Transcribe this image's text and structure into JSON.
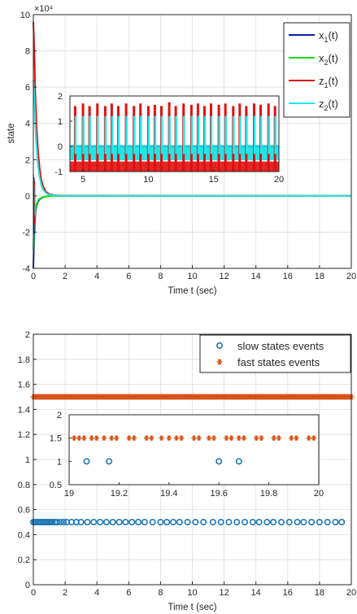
{
  "chart_data": [
    {
      "type": "line",
      "title": "",
      "xlabel": "Time t (sec)",
      "ylabel": "state",
      "xlim": [
        0,
        20
      ],
      "ylim": [
        -4,
        10
      ],
      "y_exponent": "×10⁴",
      "x_ticks": [
        0,
        2,
        4,
        6,
        8,
        10,
        12,
        14,
        16,
        18,
        20
      ],
      "y_ticks": [
        -4,
        -2,
        0,
        2,
        4,
        6,
        8,
        10
      ],
      "grid": true,
      "legend_position": "top-right",
      "series": [
        {
          "name": "x1(t)",
          "name_base": "x",
          "name_sub": "1",
          "name_suffix": "(t)",
          "color": "#0b1fa8",
          "x": [
            0,
            0.02,
            0.05,
            0.1,
            0.15,
            0.2,
            0.3,
            0.4,
            0.6,
            0.8,
            1.0,
            1.5,
            2,
            20
          ],
          "y": [
            -4.0,
            -3.2,
            -2.3,
            -1.3,
            -0.8,
            -0.55,
            -0.3,
            -0.18,
            -0.08,
            -0.03,
            -0.01,
            0,
            0,
            0
          ]
        },
        {
          "name": "x2(t)",
          "name_base": "x",
          "name_sub": "2",
          "name_suffix": "(t)",
          "color": "#12e012",
          "x": [
            0,
            0.02,
            0.05,
            0.1,
            0.15,
            0.2,
            0.3,
            0.4,
            0.6,
            0.8,
            1.0,
            1.5,
            2,
            20
          ],
          "y": [
            -3.0,
            -2.4,
            -1.7,
            -1.0,
            -0.65,
            -0.45,
            -0.25,
            -0.15,
            -0.07,
            -0.03,
            -0.01,
            0,
            0,
            0
          ]
        },
        {
          "name": "z1(t)",
          "name_base": "z",
          "name_sub": "1",
          "name_suffix": "(t)",
          "color": "#e01010",
          "x": [
            0,
            0.04,
            0.08,
            0.12,
            0.16,
            0.2,
            0.25,
            0.3,
            0.4,
            0.5,
            0.6,
            0.8,
            1.0,
            1.3,
            1.6,
            2,
            20
          ],
          "y": [
            9.6,
            8.6,
            7.2,
            5.8,
            4.8,
            3.9,
            3.1,
            2.4,
            1.5,
            0.9,
            0.55,
            0.22,
            0.1,
            0.04,
            0.02,
            0.01,
            0
          ]
        },
        {
          "name": "z2(t)",
          "name_base": "z",
          "name_sub": "2",
          "name_suffix": "(t)",
          "color": "#22e6e6",
          "x": [
            0,
            0.04,
            0.08,
            0.12,
            0.16,
            0.2,
            0.25,
            0.3,
            0.4,
            0.5,
            0.6,
            0.8,
            1.0,
            1.3,
            1.6,
            2,
            20
          ],
          "y": [
            6.4,
            5.9,
            5.0,
            4.1,
            3.3,
            2.7,
            2.1,
            1.6,
            1.0,
            0.6,
            0.36,
            0.15,
            0.06,
            0.03,
            0.01,
            0.005,
            0
          ]
        }
      ],
      "inset": {
        "xlim": [
          4,
          20
        ],
        "ylim": [
          -1,
          2
        ],
        "x_ticks": [
          5,
          10,
          15,
          20
        ],
        "y_ticks": [
          -1,
          0,
          1,
          2
        ],
        "baseline": -0.35,
        "z1_spikes": {
          "x": [
            4.4,
            5.0,
            5.5,
            6.1,
            6.7,
            7.2,
            7.7,
            8.3,
            8.9,
            9.4,
            10.0,
            10.5,
            11.0,
            11.6,
            12.1,
            12.7,
            13.3,
            13.8,
            14.3,
            14.8,
            15.4,
            15.9,
            16.5,
            17.0,
            17.5,
            18.1,
            18.6,
            19.2,
            19.7
          ],
          "y": [
            1.6,
            1.7,
            1.6,
            1.7,
            1.6,
            1.7,
            1.6,
            1.7,
            1.6,
            1.7,
            1.6,
            1.65,
            1.6,
            1.75,
            1.6,
            1.7,
            1.65,
            1.7,
            1.6,
            1.7,
            1.65,
            1.7,
            1.6,
            1.7,
            1.6,
            1.7,
            1.65,
            1.7,
            1.6
          ]
        },
        "z2_range": [
          -0.2,
          1.2
        ],
        "z1_band": [
          -1.0,
          -0.6
        ]
      }
    },
    {
      "type": "scatter",
      "title": "",
      "xlabel": "Time t (sec)",
      "ylabel": "",
      "xlim": [
        0,
        20
      ],
      "ylim": [
        0,
        2
      ],
      "x_ticks": [
        0,
        2,
        4,
        6,
        8,
        10,
        12,
        14,
        16,
        18,
        20
      ],
      "y_ticks": [
        0,
        0.2,
        0.4,
        0.6,
        0.8,
        1,
        1.2,
        1.4,
        1.6,
        1.8,
        2
      ],
      "grid": true,
      "legend_position": "top-right",
      "series": [
        {
          "name": "slow states events",
          "marker": "circle",
          "color": "#1f77b4",
          "y": 0.5,
          "x": [
            0,
            0.1,
            0.2,
            0.3,
            0.4,
            0.5,
            0.6,
            0.7,
            0.8,
            0.9,
            1.0,
            1.1,
            1.2,
            1.35,
            1.5,
            1.7,
            1.9,
            2.1,
            2.4,
            2.7,
            3.0,
            3.4,
            3.8,
            4.2,
            4.6,
            5.0,
            5.4,
            5.8,
            6.2,
            6.6,
            7.0,
            7.5,
            8.0,
            8.4,
            8.8,
            9.2,
            9.7,
            10.2,
            10.7,
            11.3,
            11.8,
            12.3,
            12.8,
            13.3,
            13.8,
            14.2,
            14.7,
            15.1,
            15.6,
            16.1,
            16.6,
            17.0,
            17.5,
            18.0,
            18.5,
            19.0,
            19.4
          ]
        },
        {
          "name": "fast states events",
          "marker": "asterisk",
          "color": "#d95319",
          "y": 1.5,
          "x_range": [
            0,
            20
          ],
          "count": 200
        }
      ],
      "inset": {
        "xlim": [
          19,
          20
        ],
        "ylim": [
          0.5,
          2
        ],
        "x_ticks": [
          19,
          19.2,
          19.4,
          19.6,
          19.8,
          20
        ],
        "y_ticks": [
          0.5,
          1,
          1.5,
          2
        ],
        "slow": {
          "x": [
            19.07,
            19.16,
            19.6,
            19.68
          ],
          "y": 1
        },
        "fast": {
          "x": [
            19.02,
            19.04,
            19.06,
            19.09,
            19.11,
            19.14,
            19.17,
            19.19,
            19.24,
            19.26,
            19.31,
            19.33,
            19.37,
            19.4,
            19.43,
            19.45,
            19.5,
            19.52,
            19.56,
            19.58,
            19.63,
            19.65,
            19.68,
            19.7,
            19.75,
            19.77,
            19.82,
            19.84,
            19.89,
            19.91,
            19.96,
            19.98
          ],
          "y": 1.5
        }
      }
    }
  ]
}
